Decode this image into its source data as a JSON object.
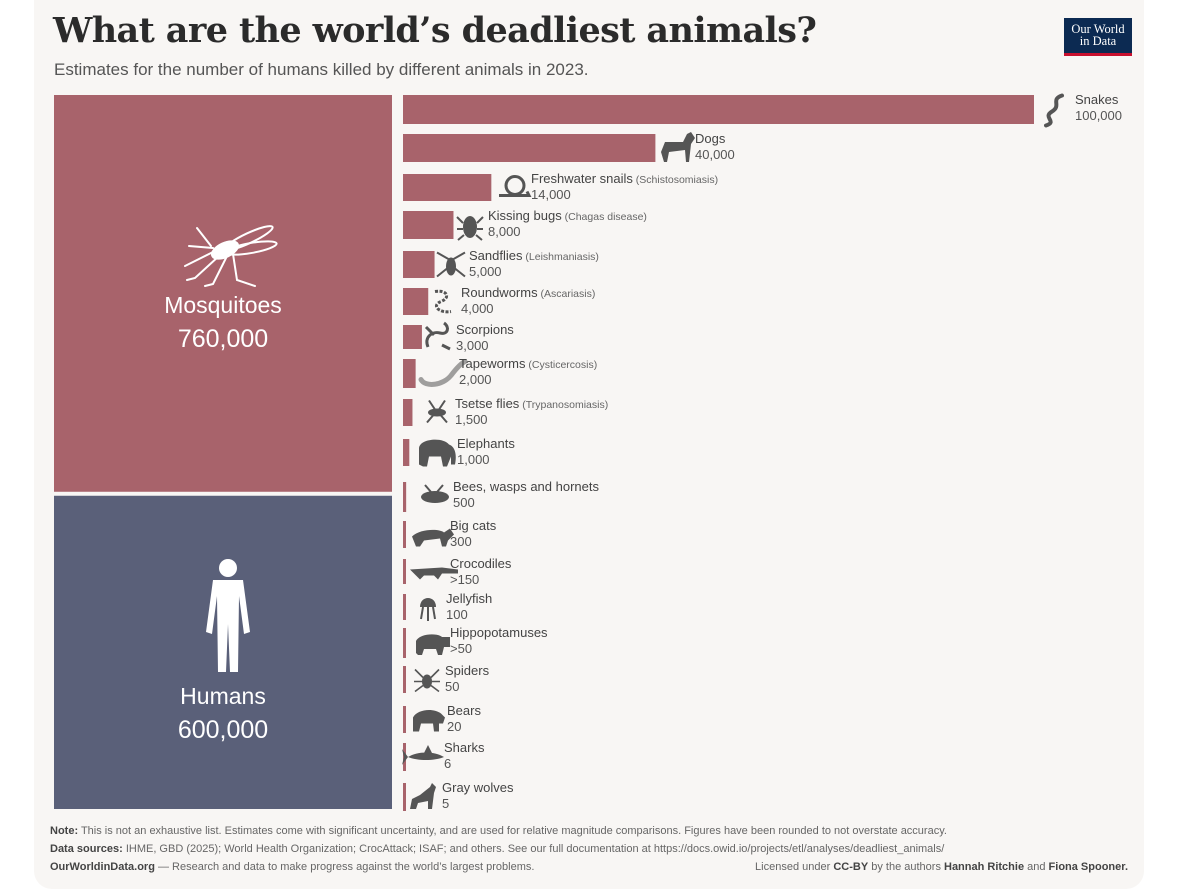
{
  "header": {
    "title": "What are the world’s deadliest animals?",
    "subtitle": "Estimates for the number of humans killed by different animals in 2023.",
    "logo_line1": "Our World",
    "logo_line2": "in Data"
  },
  "colors": {
    "bar": "#a8636b",
    "humans": "#5a6079",
    "icon": "#555555"
  },
  "chart_data": {
    "type": "bar",
    "orientation": "horizontal",
    "title": "What are the world’s deadliest animals?",
    "subtitle": "Estimates for the number of humans killed by different animals in 2023.",
    "big_blocks": [
      {
        "name": "Mosquitoes",
        "value": 760000,
        "display": "760,000",
        "icon": "mosquito-icon"
      },
      {
        "name": "Humans",
        "value": 600000,
        "display": "600,000",
        "icon": "human-figure-icon"
      }
    ],
    "categories": [
      "Snakes",
      "Dogs",
      "Freshwater snails",
      "Kissing bugs",
      "Sandflies",
      "Roundworms",
      "Scorpions",
      "Tapeworms",
      "Tsetse flies",
      "Elephants",
      "Bees, wasps and hornets",
      "Big cats",
      "Crocodiles",
      "Jellyfish",
      "Hippopotamuses",
      "Spiders",
      "Bears",
      "Sharks",
      "Gray wolves"
    ],
    "values": [
      100000,
      40000,
      14000,
      8000,
      5000,
      4000,
      3000,
      2000,
      1500,
      1000,
      500,
      300,
      150,
      100,
      50,
      50,
      20,
      6,
      5
    ],
    "display_values": [
      "100,000",
      "40,000",
      "14,000",
      "8,000",
      "5,000",
      "4,000",
      "3,000",
      "2,000",
      "1,500",
      "1,000",
      "500",
      "300",
      ">150",
      "100",
      ">50",
      "50",
      "20",
      "6",
      "5"
    ],
    "diseases": [
      "",
      "",
      "(Schistosomiasis)",
      "(Chagas disease)",
      "(Leishmaniasis)",
      "(Ascariasis)",
      "",
      "(Cysticercosis)",
      "(Trypanosomiasis)",
      "",
      "",
      "",
      "",
      "",
      "",
      "",
      "",
      "",
      ""
    ],
    "icons": [
      "snake-icon",
      "dog-icon",
      "snail-icon",
      "kissing-bug-icon",
      "sandfly-icon",
      "roundworm-icon",
      "scorpion-icon",
      "tapeworm-icon",
      "tsetse-fly-icon",
      "elephant-icon",
      "bee-icon",
      "big-cat-icon",
      "crocodile-icon",
      "jellyfish-icon",
      "hippo-icon",
      "spider-icon",
      "bear-icon",
      "shark-icon",
      "wolf-icon"
    ]
  },
  "footer": {
    "note_label": "Note:",
    "note_text": " This is not an exhaustive list. Estimates come with significant uncertainty, and are used for relative magnitude comparisons. Figures have been rounded to not overstate accuracy.",
    "sources_label": "Data sources:",
    "sources_text": " IHME, GBD (2025); World Health Organization; CrocAttack; ISAF; and others. See our full documentation at https://docs.owid.io/projects/etl/analyses/deadliest_animals/",
    "site_label": "OurWorldinData.org",
    "site_text": " — Research and data to make progress against the world’s largest problems.",
    "license_prefix": "Licensed under ",
    "license_name": "CC-BY",
    "license_mid": " by the authors ",
    "author1": "Hannah Ritchie",
    "license_and": " and ",
    "author2": "Fiona Spooner."
  }
}
